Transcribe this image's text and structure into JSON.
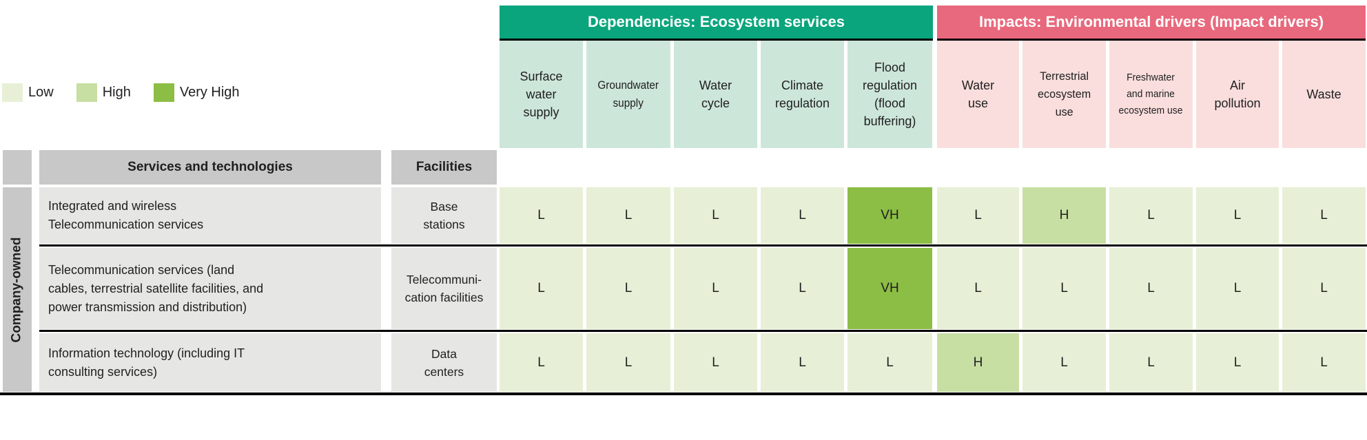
{
  "chart_data": {
    "type": "heatmap",
    "legend": [
      {
        "code": "L",
        "label": "Low",
        "color": "#e7f0d6"
      },
      {
        "code": "H",
        "label": "High",
        "color": "#c7dfa3"
      },
      {
        "code": "VH",
        "label": "Very High",
        "color": "#8cbd45"
      }
    ],
    "column_groups": [
      {
        "label": "Dependencies: Ecosystem services",
        "color": "#0aa57c",
        "columns": [
          0,
          1,
          2,
          3,
          4
        ]
      },
      {
        "label": "Impacts: Environmental drivers (Impact drivers)",
        "color": "#e8697d",
        "columns": [
          5,
          6,
          7,
          8,
          9
        ]
      }
    ],
    "columns": [
      "Surface\nwater\nsupply",
      "Groundwater\nsupply",
      "Water\ncycle",
      "Climate\nregulation",
      "Flood\nregulation\n(flood\nbuffering)",
      "Water\nuse",
      "Terrestrial\necosystem\nuse",
      "Freshwater\nand marine\necosystem use",
      "Air\npollution",
      "Waste"
    ],
    "corner_headers": {
      "services": "Services and technologies",
      "facilities": "Facilities"
    },
    "row_group_label": "Company-owned",
    "rows": [
      {
        "service": "Integrated and wireless\nTelecommunication services",
        "facility": "Base\nstations",
        "values": [
          "L",
          "L",
          "L",
          "L",
          "VH",
          "L",
          "H",
          "L",
          "L",
          "L"
        ]
      },
      {
        "service": "Telecommunication services (land\ncables, terrestrial satellite facilities, and\npower transmission and distribution)",
        "facility": "Telecommuni-\ncation facilities",
        "values": [
          "L",
          "L",
          "L",
          "L",
          "VH",
          "L",
          "L",
          "L",
          "L",
          "L"
        ]
      },
      {
        "service": "Information technology (including IT\nconsulting services)",
        "facility": "Data\ncenters",
        "values": [
          "L",
          "L",
          "L",
          "L",
          "L",
          "H",
          "L",
          "L",
          "L",
          "L"
        ]
      }
    ],
    "layout": {
      "header_cell_bg_dependencies": "#cde6da",
      "header_cell_bg_impacts": "#f9dedd",
      "corner_bg": "#c8c8c8",
      "row_bg": "#e6e6e5"
    }
  }
}
